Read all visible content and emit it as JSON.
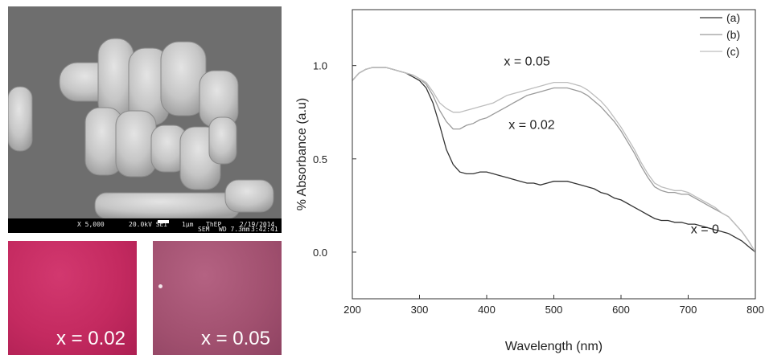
{
  "sem_image": {
    "footer": {
      "magnification": "X 5,000",
      "voltage": "20.0kV  SEI",
      "scale": "1μm",
      "institute": "ThEP",
      "mode": "SEM",
      "working_distance": "WD 7.3mm",
      "date": "2/19/2014",
      "time": "3:42:41"
    }
  },
  "photos": [
    {
      "label": "x = 0.02",
      "color": "#c42a60"
    },
    {
      "label": "x = 0.05",
      "color": "#a1506f"
    }
  ],
  "chart_data": {
    "type": "line",
    "xlabel": "Wavelength (nm)",
    "ylabel": "% Absorbance (a.u)",
    "xlim": [
      200,
      800
    ],
    "ylim": [
      -0.25,
      1.3
    ],
    "xticks": [
      200,
      300,
      400,
      500,
      600,
      700,
      800
    ],
    "yticks": [
      0.0,
      0.5,
      1.0
    ],
    "ytick_labels": [
      "0.0",
      "0.5",
      "1.0"
    ],
    "legend_position": "top-right",
    "grid": false,
    "series": [
      {
        "name": "(a)",
        "color": "#333333",
        "x": [
          200,
          210,
          220,
          230,
          240,
          250,
          260,
          270,
          280,
          290,
          300,
          310,
          320,
          330,
          340,
          350,
          360,
          370,
          380,
          390,
          400,
          410,
          420,
          430,
          440,
          450,
          460,
          470,
          480,
          490,
          500,
          510,
          520,
          530,
          540,
          550,
          560,
          570,
          580,
          590,
          600,
          610,
          620,
          630,
          640,
          650,
          660,
          670,
          680,
          690,
          700,
          710,
          720,
          730,
          740,
          750,
          760,
          770,
          780,
          790,
          800
        ],
        "y": [
          0.92,
          0.96,
          0.98,
          0.99,
          0.99,
          0.99,
          0.98,
          0.97,
          0.96,
          0.94,
          0.92,
          0.88,
          0.8,
          0.68,
          0.55,
          0.47,
          0.43,
          0.42,
          0.42,
          0.43,
          0.43,
          0.42,
          0.41,
          0.4,
          0.39,
          0.38,
          0.37,
          0.37,
          0.36,
          0.37,
          0.38,
          0.38,
          0.38,
          0.37,
          0.36,
          0.35,
          0.34,
          0.32,
          0.31,
          0.29,
          0.28,
          0.26,
          0.24,
          0.22,
          0.2,
          0.18,
          0.17,
          0.17,
          0.16,
          0.16,
          0.15,
          0.15,
          0.14,
          0.13,
          0.12,
          0.11,
          0.1,
          0.08,
          0.06,
          0.03,
          0.0
        ]
      },
      {
        "name": "(b)",
        "color": "#9a9a9a",
        "x": [
          200,
          210,
          220,
          230,
          240,
          250,
          260,
          270,
          280,
          290,
          300,
          310,
          320,
          330,
          340,
          350,
          360,
          370,
          380,
          390,
          400,
          410,
          420,
          430,
          440,
          450,
          460,
          470,
          480,
          490,
          500,
          510,
          520,
          530,
          540,
          550,
          560,
          570,
          580,
          590,
          600,
          610,
          620,
          630,
          640,
          650,
          660,
          670,
          680,
          690,
          700,
          710,
          720,
          730,
          740,
          750,
          760,
          770,
          780,
          790,
          800
        ],
        "y": [
          0.92,
          0.96,
          0.98,
          0.99,
          0.99,
          0.99,
          0.98,
          0.97,
          0.96,
          0.95,
          0.93,
          0.9,
          0.84,
          0.76,
          0.7,
          0.66,
          0.66,
          0.68,
          0.69,
          0.71,
          0.72,
          0.74,
          0.76,
          0.78,
          0.8,
          0.82,
          0.84,
          0.85,
          0.86,
          0.87,
          0.88,
          0.88,
          0.88,
          0.87,
          0.86,
          0.84,
          0.81,
          0.78,
          0.74,
          0.7,
          0.65,
          0.59,
          0.53,
          0.46,
          0.4,
          0.35,
          0.33,
          0.32,
          0.32,
          0.31,
          0.31,
          0.29,
          0.27,
          0.25,
          0.23,
          0.21,
          0.19,
          0.15,
          0.11,
          0.06,
          0.0
        ]
      },
      {
        "name": "(c)",
        "color": "#bdbdbd",
        "x": [
          200,
          210,
          220,
          230,
          240,
          250,
          260,
          270,
          280,
          290,
          300,
          310,
          320,
          330,
          340,
          350,
          360,
          370,
          380,
          390,
          400,
          410,
          420,
          430,
          440,
          450,
          460,
          470,
          480,
          490,
          500,
          510,
          520,
          530,
          540,
          550,
          560,
          570,
          580,
          590,
          600,
          610,
          620,
          630,
          640,
          650,
          660,
          670,
          680,
          690,
          700,
          710,
          720,
          730,
          740,
          750,
          760,
          770,
          780,
          790,
          800
        ],
        "y": [
          0.92,
          0.96,
          0.98,
          0.99,
          0.99,
          0.99,
          0.98,
          0.97,
          0.96,
          0.95,
          0.93,
          0.91,
          0.86,
          0.8,
          0.77,
          0.75,
          0.75,
          0.76,
          0.77,
          0.78,
          0.79,
          0.8,
          0.82,
          0.84,
          0.85,
          0.86,
          0.87,
          0.88,
          0.89,
          0.9,
          0.91,
          0.91,
          0.91,
          0.9,
          0.89,
          0.87,
          0.84,
          0.81,
          0.77,
          0.72,
          0.67,
          0.61,
          0.55,
          0.48,
          0.42,
          0.37,
          0.35,
          0.34,
          0.33,
          0.33,
          0.32,
          0.3,
          0.28,
          0.26,
          0.24,
          0.21,
          0.19,
          0.15,
          0.11,
          0.06,
          0.0
        ]
      }
    ],
    "annotations": [
      {
        "text": "x = 0.05",
        "x": 460,
        "y": 1.0
      },
      {
        "text": "x = 0.02",
        "x": 467,
        "y": 0.66
      },
      {
        "text": "x = 0",
        "x": 725,
        "y": 0.1
      }
    ]
  }
}
